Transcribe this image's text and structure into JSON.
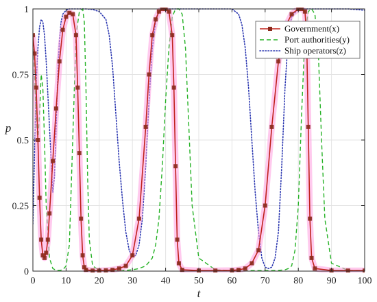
{
  "chart_data": {
    "type": "line",
    "xlabel": "t",
    "ylabel": "p",
    "xlim": [
      0,
      100
    ],
    "ylim": [
      0,
      1
    ],
    "xticks": [
      0,
      10,
      20,
      30,
      40,
      50,
      60,
      70,
      80,
      90,
      100
    ],
    "yticks": [
      0,
      0.25,
      0.5,
      0.75,
      1
    ],
    "xtick_labels": [
      "0",
      "10",
      "20",
      "30",
      "40",
      "50",
      "60",
      "70",
      "80",
      "90",
      "100"
    ],
    "ytick_labels": [
      "0",
      "0.25",
      "0.5",
      "0.75",
      "1"
    ],
    "grid": true,
    "legend_position": "top-right",
    "series": [
      {
        "name": "Government(x)",
        "color": "#c0221c",
        "marker_color": "#8b2a1c",
        "style": "solid-with-markers",
        "x": [
          0,
          0.5,
          1,
          1.5,
          2,
          2.5,
          3,
          3.5,
          4,
          4.5,
          5,
          6,
          7,
          8,
          9,
          10,
          11,
          12,
          13,
          13.5,
          14,
          14.5,
          15,
          15.5,
          16,
          18,
          20,
          22,
          24,
          26,
          28,
          30,
          32,
          34,
          35,
          36,
          37,
          38,
          39,
          40,
          41,
          42,
          42.5,
          43,
          43.5,
          44,
          45,
          50,
          55,
          60,
          62,
          64,
          66,
          68,
          70,
          72,
          74,
          76,
          78,
          80,
          81,
          82,
          82.5,
          83,
          83.5,
          84,
          85,
          90,
          95,
          100
        ],
        "y": [
          0.9,
          0.83,
          0.7,
          0.5,
          0.28,
          0.12,
          0.06,
          0.05,
          0.07,
          0.12,
          0.22,
          0.42,
          0.62,
          0.8,
          0.92,
          0.97,
          0.985,
          0.98,
          0.9,
          0.7,
          0.45,
          0.2,
          0.06,
          0.015,
          0.005,
          0.002,
          0.002,
          0.003,
          0.005,
          0.01,
          0.02,
          0.06,
          0.2,
          0.55,
          0.75,
          0.9,
          0.96,
          0.99,
          1.0,
          1.0,
          0.99,
          0.9,
          0.7,
          0.4,
          0.12,
          0.03,
          0.005,
          0.002,
          0.002,
          0.003,
          0.005,
          0.01,
          0.03,
          0.08,
          0.25,
          0.55,
          0.8,
          0.93,
          0.98,
          1.0,
          1.0,
          0.99,
          0.9,
          0.55,
          0.2,
          0.05,
          0.01,
          0.002,
          0.002,
          0.002
        ]
      },
      {
        "name": "Port authorities(y)",
        "color": "#26b226",
        "style": "dashed",
        "x": [
          0,
          0.5,
          1,
          1.5,
          2,
          2.5,
          3,
          3.5,
          4,
          5,
          6,
          7,
          8,
          9,
          10,
          11,
          12,
          13,
          14,
          15,
          15.5,
          16,
          16.5,
          17,
          18,
          20,
          22,
          24,
          26,
          28,
          30,
          32,
          34,
          36,
          37,
          38,
          39,
          40,
          41,
          42,
          43,
          44,
          45,
          46,
          47,
          48,
          50,
          55,
          60,
          65,
          70,
          72,
          74,
          76,
          77,
          78,
          79,
          80,
          81,
          82,
          83,
          84,
          85,
          86,
          87,
          88,
          90,
          95,
          100
        ],
        "y": [
          0.9,
          0.75,
          0.58,
          0.5,
          0.6,
          0.75,
          0.7,
          0.5,
          0.25,
          0.05,
          0.01,
          0.003,
          0.003,
          0.005,
          0.02,
          0.1,
          0.5,
          0.9,
          0.99,
          1.0,
          0.95,
          0.7,
          0.35,
          0.12,
          0.02,
          0.003,
          0.002,
          0.002,
          0.002,
          0.003,
          0.005,
          0.01,
          0.02,
          0.05,
          0.1,
          0.2,
          0.4,
          0.65,
          0.85,
          0.97,
          1.0,
          1.0,
          0.98,
          0.85,
          0.55,
          0.25,
          0.05,
          0.005,
          0.002,
          0.002,
          0.002,
          0.002,
          0.003,
          0.005,
          0.01,
          0.02,
          0.08,
          0.25,
          0.6,
          0.9,
          0.99,
          1.0,
          0.98,
          0.85,
          0.5,
          0.2,
          0.03,
          0.003,
          0.002
        ]
      },
      {
        "name": "Ship operators(z)",
        "color": "#2a36b0",
        "style": "dotted",
        "x": [
          0,
          0.5,
          1,
          1.5,
          2,
          2.5,
          3,
          3.5,
          4,
          5,
          6,
          6.5,
          7,
          7.5,
          8,
          8.5,
          9,
          10,
          11,
          12,
          14,
          16,
          18,
          20,
          22,
          23,
          24,
          25,
          26,
          27,
          28,
          29,
          30,
          31,
          32,
          33,
          34,
          35,
          36,
          37,
          38,
          39,
          40,
          45,
          50,
          55,
          60,
          62,
          63,
          64,
          65,
          66,
          67,
          68,
          69,
          70,
          71,
          72,
          73,
          74,
          75,
          76,
          77,
          78,
          80,
          85,
          90,
          95,
          100
        ],
        "y": [
          0.18,
          0.45,
          0.72,
          0.85,
          0.93,
          0.96,
          0.95,
          0.9,
          0.8,
          0.55,
          0.3,
          0.36,
          0.55,
          0.75,
          0.88,
          0.95,
          0.98,
          0.995,
          1.0,
          1.0,
          1.0,
          1.0,
          0.998,
          0.99,
          0.96,
          0.9,
          0.78,
          0.6,
          0.42,
          0.27,
          0.15,
          0.08,
          0.055,
          0.06,
          0.1,
          0.2,
          0.4,
          0.65,
          0.85,
          0.95,
          0.99,
          1.0,
          1.0,
          1.0,
          1.0,
          1.0,
          1.0,
          0.98,
          0.94,
          0.85,
          0.7,
          0.5,
          0.3,
          0.15,
          0.05,
          0.015,
          0.01,
          0.015,
          0.05,
          0.15,
          0.4,
          0.7,
          0.9,
          0.97,
          1.0,
          1.0,
          1.0,
          1.0,
          0.995
        ]
      }
    ]
  }
}
